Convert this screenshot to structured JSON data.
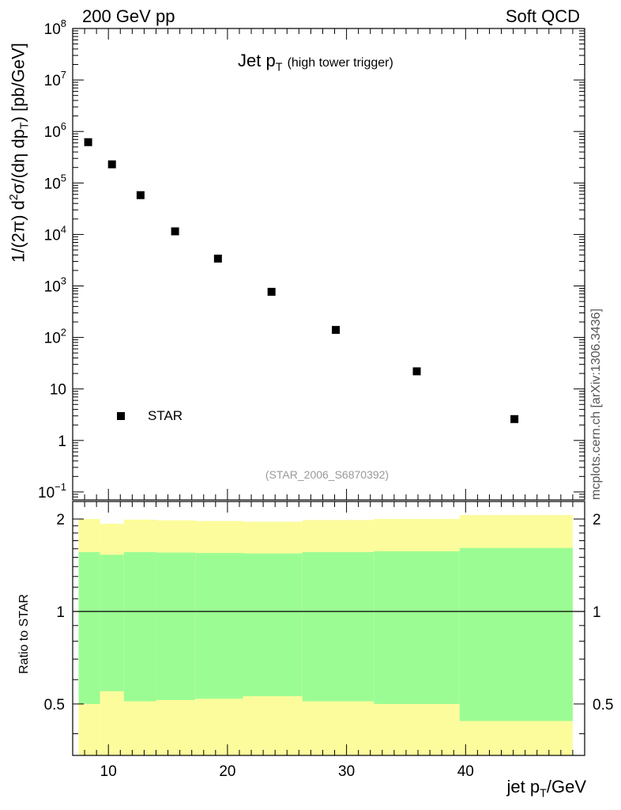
{
  "header": {
    "left": "200 GeV pp",
    "right": "Soft QCD"
  },
  "side_label": "mcplots.cern.ch [arXiv:1306.3436]",
  "reference": "(STAR_2006_S6870392)",
  "chart_data": [
    {
      "type": "scatter",
      "title_main": "Jet p",
      "title_sub": "T",
      "title_small": "(high tower trigger)",
      "ylabel": {
        "prefix": "1/(2",
        "pi": "π",
        "mid": ") d",
        "sq": "2",
        "sig": "σ/(dη dp",
        "t": "T",
        "unit": ") [pb/GeV]"
      },
      "xlim": [
        7,
        50
      ],
      "ylim": [
        0.07,
        100000000
      ],
      "yscale": "log",
      "yticks": [
        0.1,
        1,
        10,
        100,
        1000,
        10000,
        100000,
        1000000,
        10000000,
        100000000
      ],
      "ytick_labels": [
        {
          "base": "10",
          "exp": "−1"
        },
        {
          "base": "1",
          "exp": ""
        },
        {
          "base": "10",
          "exp": ""
        },
        {
          "base": "10",
          "exp": "2"
        },
        {
          "base": "10",
          "exp": "3"
        },
        {
          "base": "10",
          "exp": "4"
        },
        {
          "base": "10",
          "exp": "5"
        },
        {
          "base": "10",
          "exp": "6"
        },
        {
          "base": "10",
          "exp": "7"
        },
        {
          "base": "10",
          "exp": "8"
        }
      ],
      "legend": {
        "entry": "STAR",
        "placement": "bottom-left"
      },
      "series": [
        {
          "name": "STAR",
          "x": [
            8.3,
            10.3,
            12.7,
            15.6,
            19.2,
            23.7,
            29.1,
            35.9,
            44.1
          ],
          "y": [
            620000,
            230000,
            58000,
            11500,
            3400,
            770,
            140,
            22,
            2.6
          ]
        }
      ]
    },
    {
      "type": "area",
      "ylabel": "Ratio to STAR",
      "xlabel": {
        "main": "jet p",
        "sub": "T",
        "unit": "/GeV"
      },
      "xlim": [
        7,
        50
      ],
      "ylim": [
        0.34,
        2.28
      ],
      "yscale": "log",
      "yticks": [
        0.5,
        1,
        2
      ],
      "ytick_labels": [
        "0.5",
        "1",
        "2"
      ],
      "xticks": [
        10,
        20,
        30,
        40
      ],
      "xtick_labels": [
        "10",
        "20",
        "30",
        "40"
      ],
      "reference_line": 1,
      "bins": [
        {
          "xlo": 7.5,
          "xhi": 9.3,
          "inner_lo": 0.5,
          "inner_hi": 1.56,
          "outer_lo": 0.34,
          "outer_hi": 2.0
        },
        {
          "xlo": 9.3,
          "xhi": 11.3,
          "inner_lo": 0.55,
          "inner_hi": 1.53,
          "outer_lo": 0.34,
          "outer_hi": 1.93
        },
        {
          "xlo": 11.3,
          "xhi": 14.0,
          "inner_lo": 0.51,
          "inner_hi": 1.56,
          "outer_lo": 0.34,
          "outer_hi": 1.99
        },
        {
          "xlo": 14.0,
          "xhi": 17.3,
          "inner_lo": 0.515,
          "inner_hi": 1.555,
          "outer_lo": 0.34,
          "outer_hi": 1.98
        },
        {
          "xlo": 17.3,
          "xhi": 21.3,
          "inner_lo": 0.52,
          "inner_hi": 1.55,
          "outer_lo": 0.34,
          "outer_hi": 1.97
        },
        {
          "xlo": 21.3,
          "xhi": 26.3,
          "inner_lo": 0.53,
          "inner_hi": 1.545,
          "outer_lo": 0.34,
          "outer_hi": 1.96
        },
        {
          "xlo": 26.3,
          "xhi": 32.3,
          "inner_lo": 0.51,
          "inner_hi": 1.56,
          "outer_lo": 0.34,
          "outer_hi": 1.985
        },
        {
          "xlo": 32.3,
          "xhi": 39.5,
          "inner_lo": 0.5,
          "inner_hi": 1.57,
          "outer_lo": 0.34,
          "outer_hi": 2.0
        },
        {
          "xlo": 39.5,
          "xhi": 49.0,
          "inner_lo": 0.44,
          "inner_hi": 1.61,
          "outer_lo": 0.34,
          "outer_hi": 2.06
        }
      ],
      "colors": {
        "inner": "#9cfc94",
        "outer": "#fcfc9c",
        "points": "#000000"
      }
    }
  ]
}
